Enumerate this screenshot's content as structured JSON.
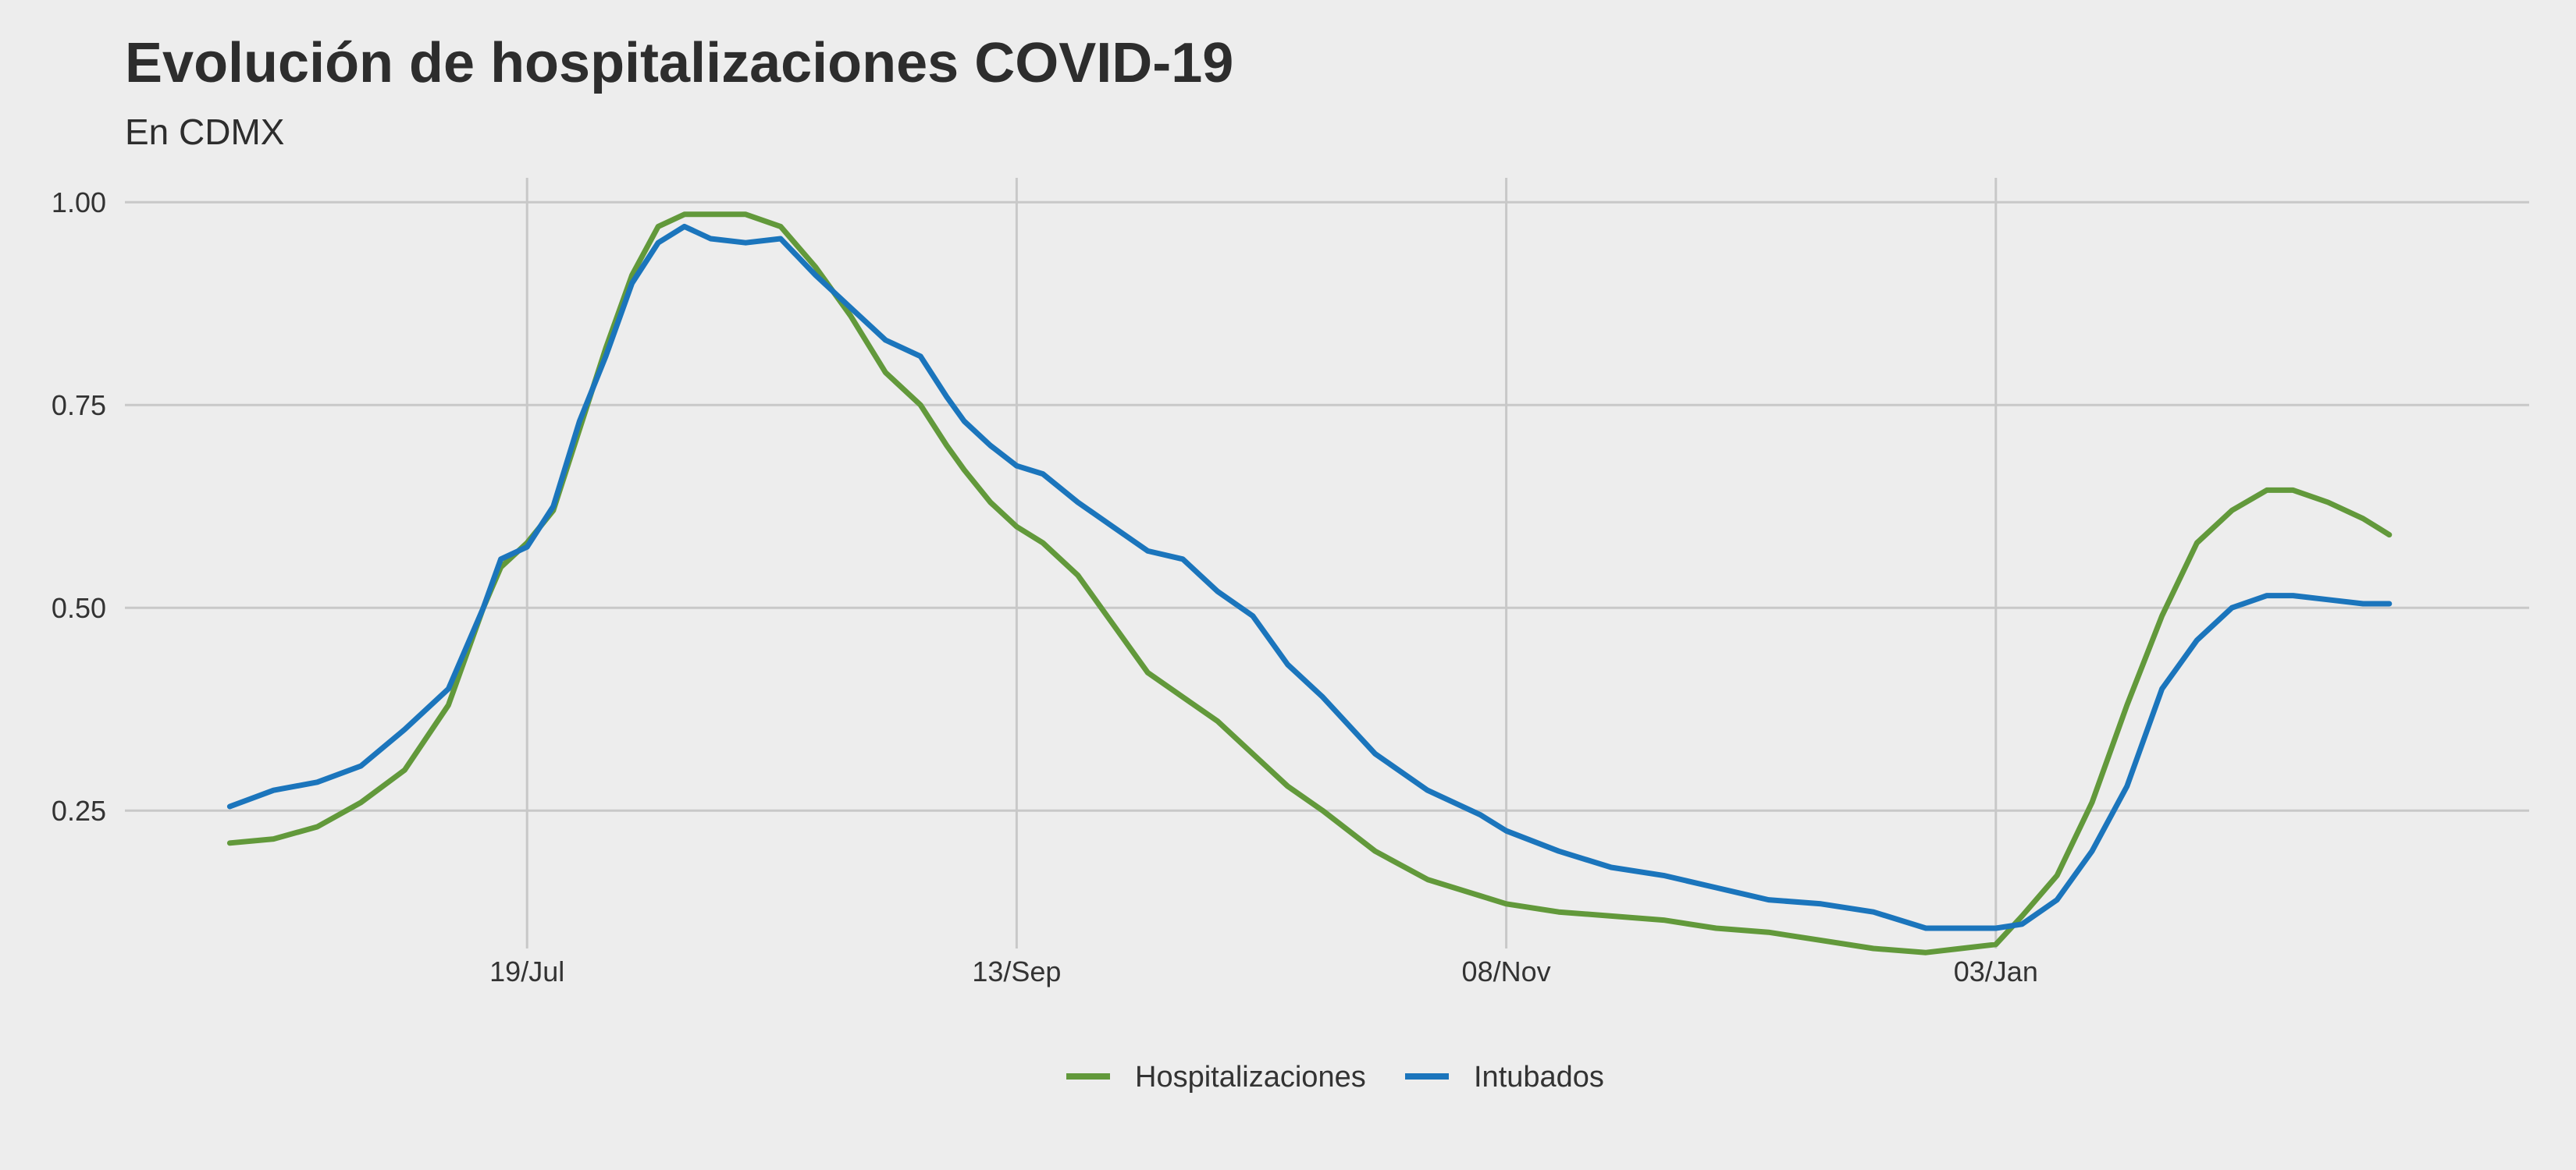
{
  "chart_data": {
    "type": "line",
    "title": "Evolución de hospitalizaciones COVID-19",
    "subtitle": "En CDMX",
    "xlabel": "",
    "ylabel": "",
    "x_ticks": [
      {
        "date": "2020-07-19",
        "label": "19/Jul"
      },
      {
        "date": "2020-09-13",
        "label": "13/Sep"
      },
      {
        "date": "2020-11-08",
        "label": "08/Nov"
      },
      {
        "date": "2021-01-03",
        "label": "03/Jan"
      }
    ],
    "xlim": [
      "2020-06-03",
      "2021-03-05"
    ],
    "y_ticks": [
      0.25,
      0.5,
      0.75,
      1.0
    ],
    "y_tick_labels": [
      "0.25",
      "0.50",
      "0.75",
      "1.00"
    ],
    "ylim": [
      0.08,
      1.03
    ],
    "grid": true,
    "legend_position": "bottom",
    "series": [
      {
        "name": "Hospitalizaciones",
        "color": "#62993b",
        "x": [
          "2020-06-15",
          "2020-06-20",
          "2020-06-25",
          "2020-06-30",
          "2020-07-05",
          "2020-07-10",
          "2020-07-14",
          "2020-07-16",
          "2020-07-19",
          "2020-07-22",
          "2020-07-25",
          "2020-07-28",
          "2020-07-31",
          "2020-08-03",
          "2020-08-06",
          "2020-08-09",
          "2020-08-13",
          "2020-08-17",
          "2020-08-21",
          "2020-08-25",
          "2020-08-29",
          "2020-09-02",
          "2020-09-05",
          "2020-09-07",
          "2020-09-10",
          "2020-09-13",
          "2020-09-16",
          "2020-09-20",
          "2020-09-24",
          "2020-09-28",
          "2020-10-02",
          "2020-10-06",
          "2020-10-10",
          "2020-10-14",
          "2020-10-18",
          "2020-10-24",
          "2020-10-30",
          "2020-11-05",
          "2020-11-08",
          "2020-11-14",
          "2020-11-20",
          "2020-11-26",
          "2020-12-02",
          "2020-12-08",
          "2020-12-14",
          "2020-12-20",
          "2020-12-26",
          "2020-12-30",
          "2021-01-03",
          "2021-01-06",
          "2021-01-10",
          "2021-01-14",
          "2021-01-18",
          "2021-01-22",
          "2021-01-26",
          "2021-01-30",
          "2021-02-03",
          "2021-02-06",
          "2021-02-10",
          "2021-02-14",
          "2021-02-17"
        ],
        "values": [
          0.21,
          0.215,
          0.23,
          0.26,
          0.3,
          0.38,
          0.5,
          0.55,
          0.58,
          0.62,
          0.72,
          0.82,
          0.91,
          0.97,
          0.985,
          0.985,
          0.985,
          0.97,
          0.92,
          0.86,
          0.79,
          0.75,
          0.7,
          0.67,
          0.63,
          0.6,
          0.58,
          0.54,
          0.48,
          0.42,
          0.39,
          0.36,
          0.32,
          0.28,
          0.25,
          0.2,
          0.165,
          0.145,
          0.135,
          0.125,
          0.12,
          0.115,
          0.105,
          0.1,
          0.09,
          0.08,
          0.075,
          0.08,
          0.085,
          0.12,
          0.17,
          0.26,
          0.38,
          0.49,
          0.58,
          0.62,
          0.645,
          0.645,
          0.63,
          0.61,
          0.59
        ]
      },
      {
        "name": "Intubados",
        "color": "#1b75bc",
        "x": [
          "2020-06-15",
          "2020-06-20",
          "2020-06-25",
          "2020-06-30",
          "2020-07-05",
          "2020-07-10",
          "2020-07-14",
          "2020-07-16",
          "2020-07-19",
          "2020-07-22",
          "2020-07-25",
          "2020-07-28",
          "2020-07-31",
          "2020-08-03",
          "2020-08-06",
          "2020-08-09",
          "2020-08-13",
          "2020-08-17",
          "2020-08-21",
          "2020-08-25",
          "2020-08-29",
          "2020-09-02",
          "2020-09-05",
          "2020-09-07",
          "2020-09-10",
          "2020-09-13",
          "2020-09-16",
          "2020-09-20",
          "2020-09-24",
          "2020-09-28",
          "2020-10-02",
          "2020-10-06",
          "2020-10-10",
          "2020-10-14",
          "2020-10-18",
          "2020-10-24",
          "2020-10-30",
          "2020-11-05",
          "2020-11-08",
          "2020-11-14",
          "2020-11-20",
          "2020-11-26",
          "2020-12-02",
          "2020-12-08",
          "2020-12-14",
          "2020-12-20",
          "2020-12-26",
          "2020-12-30",
          "2021-01-03",
          "2021-01-06",
          "2021-01-10",
          "2021-01-14",
          "2021-01-18",
          "2021-01-22",
          "2021-01-26",
          "2021-01-30",
          "2021-02-03",
          "2021-02-06",
          "2021-02-10",
          "2021-02-14",
          "2021-02-17"
        ],
        "values": [
          0.255,
          0.275,
          0.285,
          0.305,
          0.35,
          0.4,
          0.5,
          0.56,
          0.575,
          0.625,
          0.73,
          0.81,
          0.9,
          0.95,
          0.97,
          0.955,
          0.95,
          0.955,
          0.91,
          0.87,
          0.83,
          0.81,
          0.76,
          0.73,
          0.7,
          0.675,
          0.665,
          0.63,
          0.6,
          0.57,
          0.56,
          0.52,
          0.49,
          0.43,
          0.39,
          0.32,
          0.275,
          0.245,
          0.225,
          0.2,
          0.18,
          0.17,
          0.155,
          0.14,
          0.135,
          0.125,
          0.105,
          0.105,
          0.105,
          0.11,
          0.14,
          0.2,
          0.28,
          0.4,
          0.46,
          0.5,
          0.515,
          0.515,
          0.51,
          0.505,
          0.505
        ]
      }
    ]
  }
}
